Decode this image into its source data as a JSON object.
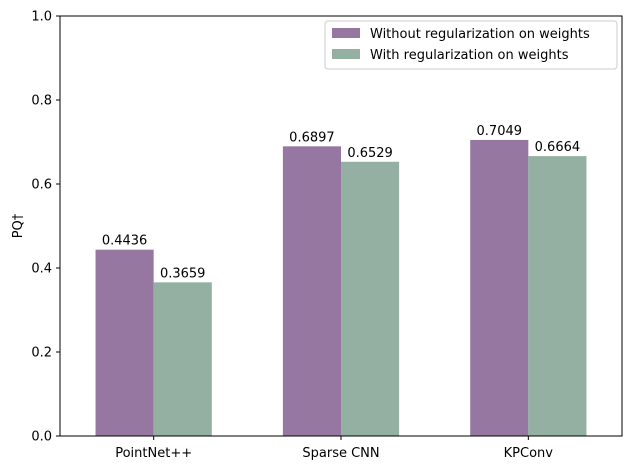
{
  "chart_data": {
    "type": "bar",
    "title": "",
    "xlabel": "",
    "ylabel": "PQ†",
    "ylim": [
      0,
      1.0
    ],
    "yticks": [
      "0.0",
      "0.2",
      "0.4",
      "0.6",
      "0.8",
      "1.0"
    ],
    "ytick_values": [
      0,
      0.2,
      0.4,
      0.6,
      0.8,
      1.0
    ],
    "categories": [
      "PointNet++",
      "Sparse CNN",
      "KPConv"
    ],
    "series": [
      {
        "name": "Without regularization on weights",
        "values": [
          0.4436,
          0.6897,
          0.7049
        ],
        "labels": [
          "0.4436",
          "0.6897",
          "0.7049"
        ],
        "color": "#9677a2"
      },
      {
        "name": "With regularization on weights",
        "values": [
          0.3659,
          0.6529,
          0.6664
        ],
        "labels": [
          "0.3659",
          "0.6529",
          "0.6664"
        ],
        "color": "#93b0a2"
      }
    ],
    "grid": false,
    "legend_position": "top-right"
  }
}
